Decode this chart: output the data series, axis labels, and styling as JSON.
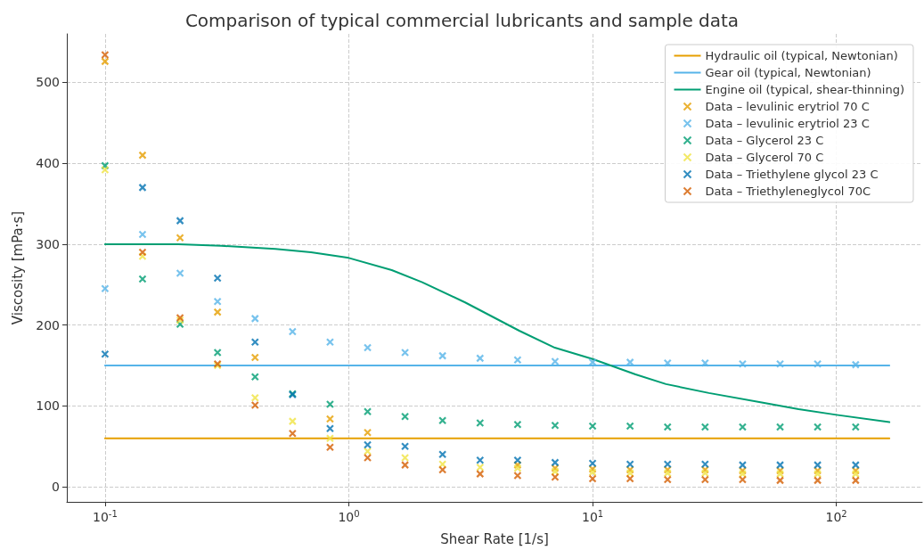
{
  "chart_data": {
    "type": "scatter",
    "title": "Comparison of typical commercial lubricants and sample data",
    "xlabel": "Shear Rate [1/s]",
    "ylabel": "Viscosity [mPa·s]",
    "x": [
      0.1,
      0.1425,
      0.2031,
      0.2894,
      0.4125,
      0.5878,
      0.8377,
      1.194,
      1.701,
      2.424,
      3.455,
      4.924,
      7.017,
      10.0,
      14.25,
      20.31,
      28.94,
      41.25,
      58.78,
      83.77,
      120
    ],
    "log": "x",
    "xlim": [
      0.0697,
      225
    ],
    "ylim": [
      -18.6,
      560
    ],
    "xticks": [
      {
        "value": 0.1,
        "label": "10$^{-1}$"
      },
      {
        "value": 1,
        "label": "10$^{0}$"
      },
      {
        "value": 10,
        "label": "10$^{1}$"
      },
      {
        "value": 100,
        "label": "10$^{2}$"
      }
    ],
    "yticks": [
      0,
      100,
      200,
      300,
      400,
      500
    ],
    "grid": true,
    "legend": "top right",
    "marker": "cross",
    "series": [
      {
        "name": "Hydraulic oil (typical, Newtonian)",
        "type": "line",
        "marker": "none",
        "line_style": "solid",
        "color": "#e69f00",
        "x": [
          0.1,
          165
        ],
        "values": [
          60,
          60
        ]
      },
      {
        "name": "Gear oil (typical, Newtonian)",
        "type": "line",
        "marker": "none",
        "line_style": "solid",
        "color": "#56b4e9",
        "x": [
          0.1,
          165
        ],
        "values": [
          150,
          150
        ]
      },
      {
        "name": "Engine oil (typical, shear-thinning)",
        "type": "line",
        "marker": "none",
        "line_style": "solid",
        "color": "#009e73",
        "x": [
          0.1,
          0.2,
          0.3,
          0.5,
          0.7,
          1,
          1.5,
          2,
          3,
          5,
          7,
          10,
          15,
          20,
          30,
          50,
          70,
          100,
          165
        ],
        "values": [
          300,
          300,
          298,
          294,
          290,
          283,
          268,
          253,
          228,
          193,
          172,
          158,
          139,
          127,
          116,
          104,
          96,
          89,
          80
        ]
      },
      {
        "name": "Data – levulinic erytriol 70 C",
        "color": "#e69f00",
        "values": [
          526,
          410,
          308,
          216,
          160,
          null,
          84,
          67,
          null,
          null,
          null,
          27,
          23,
          22,
          21,
          21,
          21,
          20,
          20,
          20,
          20
        ]
      },
      {
        "name": "Data – levulinic erytriol 23 C",
        "color": "#56b4e9",
        "values": [
          245,
          312,
          264,
          229,
          208,
          192,
          179,
          172,
          166,
          162,
          159,
          157,
          155,
          154,
          154,
          153,
          153,
          152,
          152,
          152,
          151
        ]
      },
      {
        "name": "Data – Glycerol 23 C",
        "color": "#009e73",
        "values": [
          397,
          257,
          201,
          166,
          136,
          115,
          102,
          93,
          87,
          82,
          79,
          77,
          76,
          75,
          75,
          74,
          74,
          74,
          74,
          74,
          74
        ]
      },
      {
        "name": "Data – Glycerol 70 C",
        "color": "#f0e442",
        "values": [
          392,
          285,
          206,
          150,
          110,
          81,
          60,
          44,
          36,
          28,
          24,
          23,
          19,
          18,
          17,
          17,
          17,
          16,
          16,
          16,
          16
        ]
      },
      {
        "name": "Data – Triethylene glycol 23 C",
        "color": "#0072b2",
        "values": [
          164,
          370,
          329,
          258,
          179,
          114,
          72,
          52,
          50,
          40,
          33,
          33,
          30,
          29,
          28,
          28,
          28,
          27,
          27,
          27,
          27
        ]
      },
      {
        "name": "Data – Triethyleneglycol 70C",
        "color": "#d55e00",
        "values": [
          534,
          290,
          209,
          152,
          101,
          66,
          49,
          36,
          27,
          21,
          16,
          14,
          12,
          10,
          10,
          9,
          9,
          9,
          8,
          8,
          8
        ]
      }
    ]
  }
}
